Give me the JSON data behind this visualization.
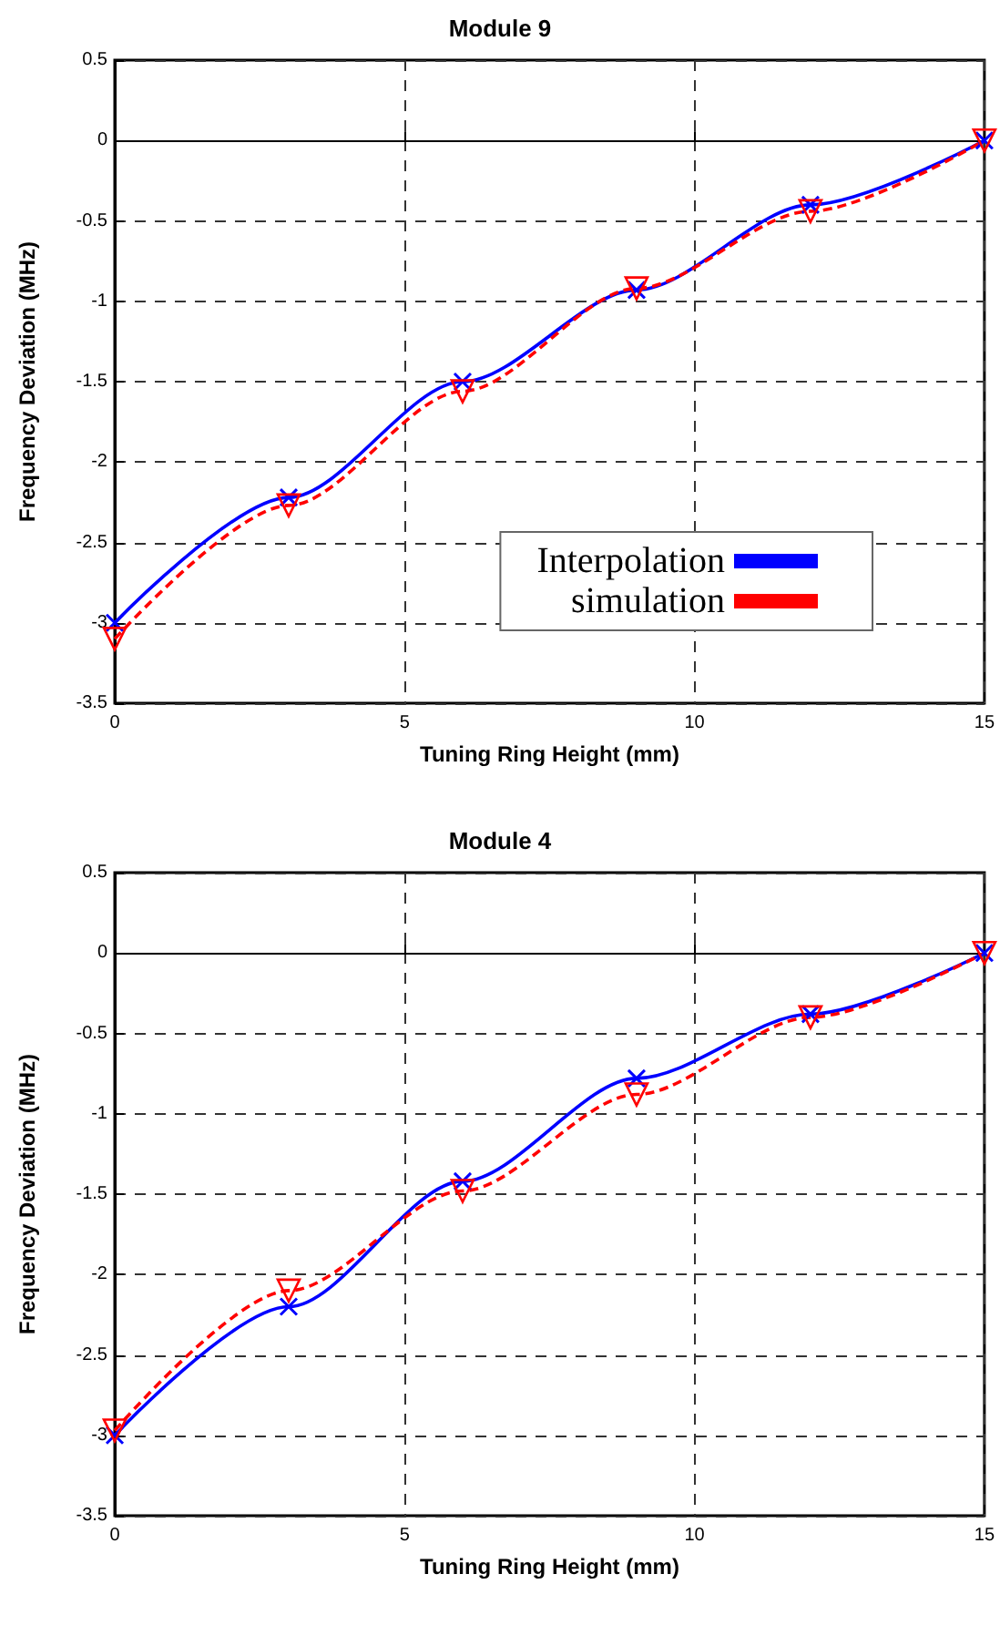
{
  "chart_data": [
    {
      "type": "line",
      "title": "Module 9",
      "xlabel": "Tuning Ring Height (mm)",
      "ylabel": "Frequency Deviation (MHz)",
      "x": [
        0,
        3,
        6,
        9,
        12,
        15
      ],
      "series": [
        {
          "name": "Interpolation",
          "color": "#0000ff",
          "marker": "cross",
          "line_style": "solid",
          "values": [
            -3,
            -2.22,
            -1.5,
            -0.93,
            -0.4,
            0
          ]
        },
        {
          "name": "simulation",
          "color": "#ff0000",
          "marker": "triangle",
          "line_style": "dashed",
          "values": [
            -3.1,
            -2.27,
            -1.56,
            -0.92,
            -0.44,
            0
          ]
        }
      ],
      "xlim": [
        0,
        15
      ],
      "xticks": [
        0,
        5,
        10,
        15
      ],
      "ylim": [
        -3.5,
        0.5
      ],
      "yticks": [
        -3.5,
        -3,
        -2.5,
        -2,
        -1.5,
        -1,
        -0.5,
        0,
        0.5
      ],
      "grid": true,
      "legend": "bottom right"
    },
    {
      "type": "line",
      "title": "Module 4",
      "xlabel": "Tuning Ring Height (mm)",
      "ylabel": "Frequency Deviation (MHz)",
      "x": [
        0,
        3,
        6,
        9,
        12,
        15
      ],
      "series": [
        {
          "color": "#0000ff",
          "marker": "cross",
          "line_style": "solid",
          "values": [
            -3,
            -2.2,
            -1.42,
            -0.78,
            -0.38,
            0
          ]
        },
        {
          "color": "#ff0000",
          "marker": "triangle",
          "line_style": "dashed",
          "values": [
            -2.97,
            -2.1,
            -1.48,
            -0.88,
            -0.4,
            0
          ]
        }
      ],
      "xlim": [
        0,
        15
      ],
      "xticks": [
        0,
        5,
        10,
        15
      ],
      "ylim": [
        -3.5,
        0.5
      ],
      "yticks": [
        -3.5,
        -3,
        -2.5,
        -2,
        -1.5,
        -1,
        -0.5,
        0,
        0.5
      ],
      "grid": true,
      "legend": false
    }
  ]
}
